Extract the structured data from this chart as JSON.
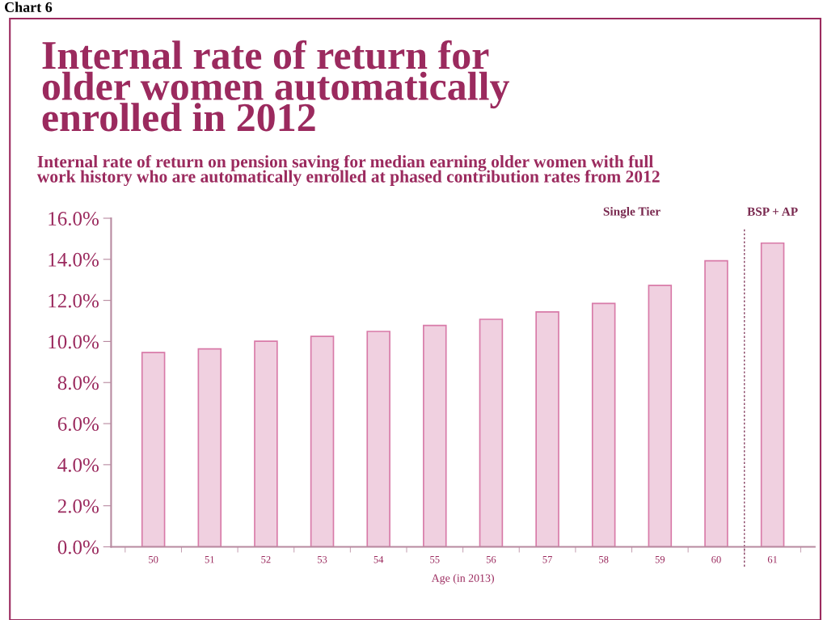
{
  "chart_data": {
    "type": "bar",
    "title": "Internal rate of return for\nolder women automatically\nenrolled in 2012",
    "subtitle": "Internal rate of return on pension saving for median earning older women with full\nwork history who are automatically enrolled at phased contribution rates from 2012",
    "xlabel": "Age (in 2013)",
    "categories": [
      "50",
      "51",
      "52",
      "53",
      "54",
      "55",
      "56",
      "57",
      "58",
      "59",
      "60",
      "61"
    ],
    "values": [
      9.46,
      9.64,
      10.01,
      10.25,
      10.49,
      10.78,
      11.08,
      11.44,
      11.85,
      12.73,
      13.93,
      14.79
    ],
    "color": "#f0d0e0",
    "ylim": [
      0,
      16
    ],
    "yticks": [
      {
        "value": 0,
        "label": "0.0%"
      },
      {
        "value": 2,
        "label": "2.0%"
      },
      {
        "value": 4,
        "label": "4.0%"
      },
      {
        "value": 6,
        "label": "6.0%"
      },
      {
        "value": 8,
        "label": "8.0%"
      },
      {
        "value": 10,
        "label": "10.0%"
      },
      {
        "value": 12,
        "label": "12.0%"
      },
      {
        "value": 14,
        "label": "14.0%"
      },
      {
        "value": 16,
        "label": "16.0%"
      }
    ],
    "annotations": [
      "Chart 6",
      "Single Tier",
      "BSP + AP"
    ],
    "grid": false
  }
}
